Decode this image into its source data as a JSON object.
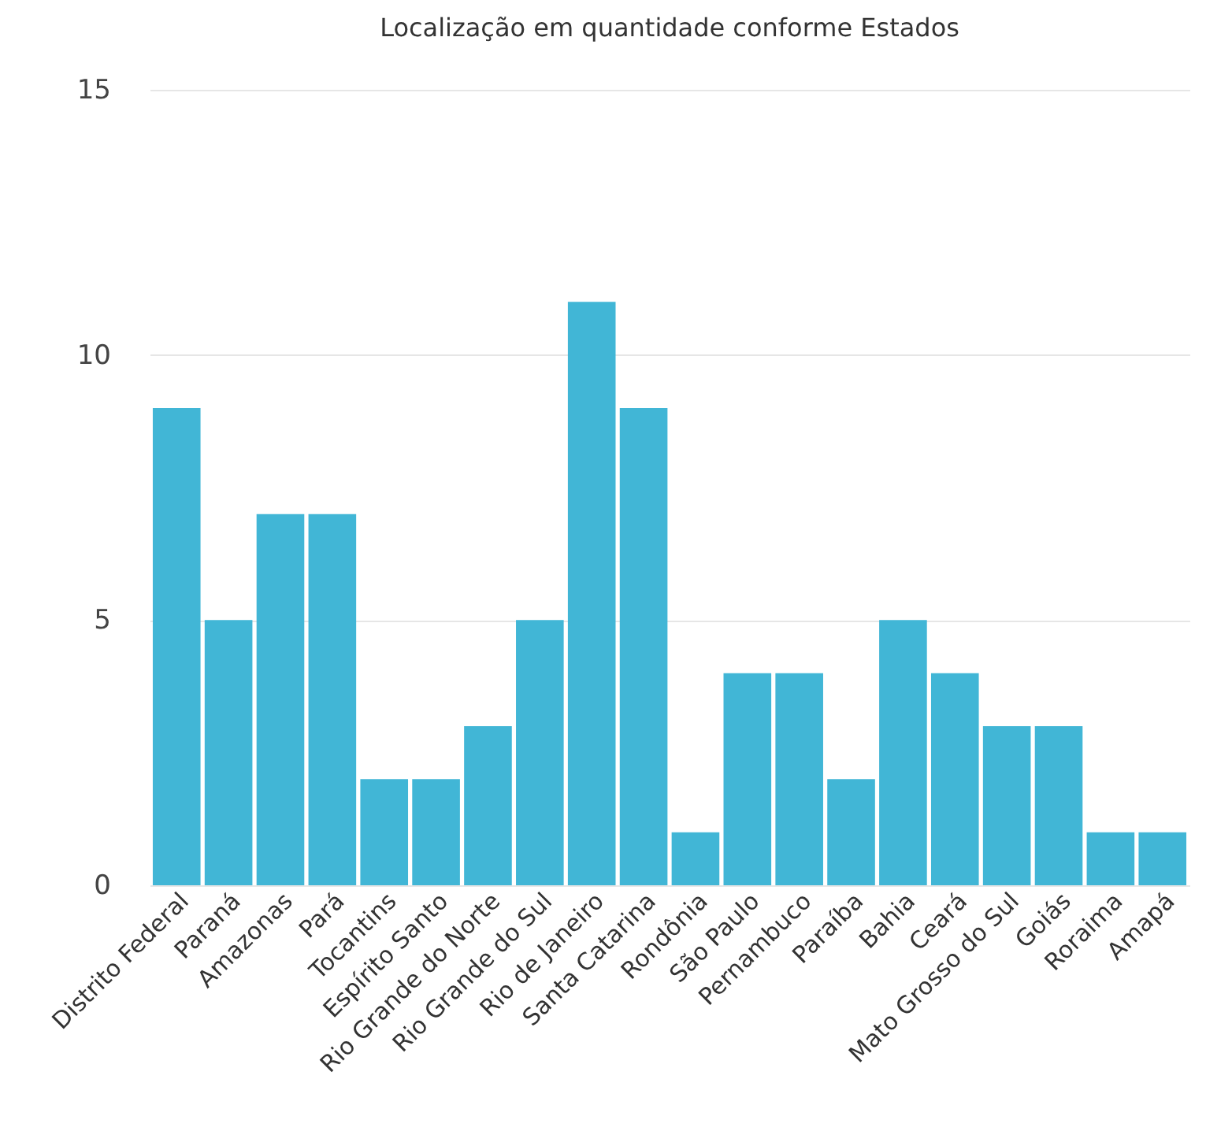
{
  "chart_data": {
    "type": "bar",
    "title": "Localização em quantidade conforme Estados",
    "categories": [
      "Distrito Federal",
      "Paraná",
      "Amazonas",
      "Pará",
      "Tocantins",
      "Espírito Santo",
      "Rio Grande do Norte",
      "Rio Grande do Sul",
      "Rio de Janeiro",
      "Santa Catarina",
      "Rondônia",
      "São Paulo",
      "Pernambuco",
      "Paraíba",
      "Bahia",
      "Ceará",
      "Mato Grosso do Sul",
      "Goiás",
      "Roraima",
      "Amapá"
    ],
    "values": [
      9,
      5,
      7,
      7,
      2,
      2,
      3,
      5,
      11,
      9,
      1,
      4,
      4,
      2,
      5,
      4,
      3,
      3,
      1,
      1
    ],
    "color": "#41b6d6",
    "ylim": [
      0,
      15
    ],
    "yticks": [
      0,
      5,
      10,
      15
    ],
    "grid": "y"
  }
}
